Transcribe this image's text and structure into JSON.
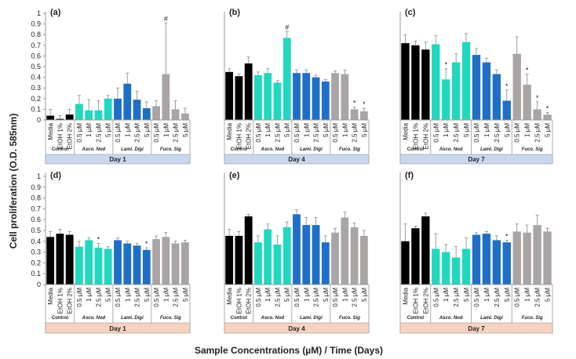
{
  "figure": {
    "ylabel": "Cell proliferation (O.D. 585nm)",
    "xlabel": "Sample Concentrations (µM) / Time (Days)"
  },
  "colors": {
    "control": "#000000",
    "asco": "#20D8BE",
    "lami": "#1F6FC6",
    "fuco": "#A9A5A5",
    "day_band_top": "#C9D7EE",
    "day_band_bottom": "#F7D2C0",
    "axis": "#999999",
    "error_bar": "#888888"
  },
  "chart_data": [
    {
      "type": "bar",
      "panel": "(a)",
      "day_label": "Day 1",
      "ylim": [
        0,
        1
      ],
      "yticks": [
        0,
        0.1,
        0.2,
        0.3,
        0.4,
        0.5,
        0.6,
        0.7,
        0.8,
        0.9,
        1
      ],
      "categories": [
        "Media",
        "EtOH 1%",
        "EtOH 2%",
        "0.5 µM",
        "1 µM",
        "2.5 µM",
        "5 µM",
        "0.5 µM",
        "1 µM",
        "2.5 µM",
        "5 µM",
        "0.5 µM",
        "1 µM",
        "2.5 µM",
        "5 µM"
      ],
      "groups": [
        "Control",
        "Asco. Nod",
        "Lami. Digi",
        "Fuco. Sig"
      ],
      "values": [
        0.04,
        0.01,
        0.05,
        0.15,
        0.09,
        0.09,
        0.2,
        0.2,
        0.34,
        0.19,
        0.11,
        0.13,
        0.43,
        0.1,
        0.06
      ],
      "errors": [
        0.06,
        0.03,
        0.05,
        0.08,
        0.1,
        0.09,
        0.03,
        0.1,
        0.1,
        0.08,
        0.06,
        0.05,
        0.48,
        0.08,
        0.05
      ],
      "annotations": [
        {
          "bar": 12,
          "text": "#"
        }
      ]
    },
    {
      "type": "bar",
      "panel": "(b)",
      "day_label": "Day 4",
      "ylim": [
        0,
        1
      ],
      "categories": [
        "Media",
        "EtOH 1%",
        "EtOH 2%",
        "0.5 µM",
        "1 µM",
        "2.5 µM",
        "5 µM",
        "0.5 µM",
        "1 µM",
        "2.5 µM",
        "5 µM",
        "0.5 µM",
        "1 µM",
        "2.5 µM",
        "5 µM"
      ],
      "groups": [
        "Control",
        "Asco. Nod",
        "Lami. Digi",
        "Fuco. Sig"
      ],
      "values": [
        0.45,
        0.41,
        0.53,
        0.42,
        0.44,
        0.35,
        0.77,
        0.44,
        0.44,
        0.4,
        0.36,
        0.44,
        0.43,
        0.1,
        0.08
      ],
      "errors": [
        0.03,
        0.02,
        0.06,
        0.03,
        0.04,
        0.02,
        0.06,
        0.03,
        0.03,
        0.02,
        0.02,
        0.02,
        0.04,
        0.02,
        0.03
      ],
      "annotations": [
        {
          "bar": 6,
          "text": "#"
        },
        {
          "bar": 13,
          "text": "*"
        },
        {
          "bar": 14,
          "text": "*"
        }
      ]
    },
    {
      "type": "bar",
      "panel": "(c)",
      "day_label": "Day 7",
      "ylim": [
        0,
        1
      ],
      "categories": [
        "Media",
        "EtOH 1%",
        "EtOH 2%",
        "0.5 µM",
        "1 µM",
        "2.5 µM",
        "5 µM",
        "0.5 µM",
        "1 µM",
        "2.5 µM",
        "5 µM",
        "0.5 µM",
        "1 µM",
        "2.5 µM",
        "5 µM"
      ],
      "groups": [
        "Control",
        "Asco. Nod",
        "Lami. Digi",
        "Fuco. Sig"
      ],
      "values": [
        0.72,
        0.7,
        0.66,
        0.71,
        0.38,
        0.54,
        0.73,
        0.61,
        0.54,
        0.43,
        0.18,
        0.62,
        0.33,
        0.1,
        0.05
      ],
      "errors": [
        0.08,
        0.04,
        0.07,
        0.08,
        0.1,
        0.08,
        0.08,
        0.06,
        0.04,
        0.04,
        0.1,
        0.16,
        0.1,
        0.07,
        0.02
      ],
      "annotations": [
        {
          "bar": 4,
          "text": "*"
        },
        {
          "bar": 10,
          "text": "*"
        },
        {
          "bar": 12,
          "text": "*"
        },
        {
          "bar": 13,
          "text": "*"
        },
        {
          "bar": 14,
          "text": "*"
        }
      ]
    },
    {
      "type": "bar",
      "panel": "(d)",
      "day_label": "Day 1",
      "ylim": [
        0,
        1
      ],
      "categories": [
        "Media",
        "EtOH 1%",
        "EtOH 2%",
        "0.5 µM",
        "1 µM",
        "2.5 µM",
        "5 µM",
        "0.5 µM",
        "1 µM",
        "2.5 µM",
        "5 µM",
        "0.5 µM",
        "1 µM",
        "2.5 µM",
        "5 µM"
      ],
      "groups": [
        "Control",
        "Asco. Nod",
        "Lami. Digi",
        "Fuco. Sig"
      ],
      "values": [
        0.44,
        0.47,
        0.46,
        0.35,
        0.41,
        0.34,
        0.33,
        0.41,
        0.38,
        0.36,
        0.32,
        0.42,
        0.44,
        0.38,
        0.39
      ],
      "errors": [
        0.05,
        0.04,
        0.03,
        0.05,
        0.02,
        0.04,
        0.02,
        0.02,
        0.02,
        0.02,
        0.02,
        0.03,
        0.04,
        0.02,
        0.02
      ],
      "annotations": [
        {
          "bar": 5,
          "text": "*"
        },
        {
          "bar": 10,
          "text": "*"
        }
      ]
    },
    {
      "type": "bar",
      "panel": "(e)",
      "day_label": "Day 4",
      "ylim": [
        0,
        1
      ],
      "categories": [
        "Media",
        "EtOH 1%",
        "EtOH 2%",
        "0.5 µM",
        "1 µM",
        "2.5 µM",
        "5 µM",
        "0.5 µM",
        "1 µM",
        "2.5 µM",
        "5 µM",
        "0.5 µM",
        "1 µM",
        "2.5 µM",
        "5 µM"
      ],
      "groups": [
        "Control",
        "Asco. Nod",
        "Lami. Digi",
        "Fuco. Sig"
      ],
      "values": [
        0.45,
        0.45,
        0.63,
        0.39,
        0.51,
        0.37,
        0.53,
        0.65,
        0.55,
        0.55,
        0.39,
        0.48,
        0.62,
        0.53,
        0.45
      ],
      "errors": [
        0.06,
        0.04,
        0.02,
        0.06,
        0.05,
        0.08,
        0.05,
        0.04,
        0.07,
        0.07,
        0.06,
        0.04,
        0.05,
        0.04,
        0.05
      ],
      "annotations": []
    },
    {
      "type": "bar",
      "panel": "(f)",
      "day_label": "Day 7",
      "ylim": [
        0,
        1
      ],
      "categories": [
        "Media",
        "EtOH 1%",
        "EtOH 2%",
        "0.5 µM",
        "1 µM",
        "2.5 µM",
        "5 µM",
        "0.5 µM",
        "1 µM",
        "2.5 µM",
        "5 µM",
        "0.5 µM",
        "1 µM",
        "2.5 µM",
        "5 µM"
      ],
      "groups": [
        "Control",
        "Asco. Nod",
        "Lami. Digi",
        "Fuco. Sig"
      ],
      "values": [
        0.4,
        0.52,
        0.63,
        0.33,
        0.3,
        0.25,
        0.33,
        0.46,
        0.47,
        0.41,
        0.39,
        0.49,
        0.48,
        0.55,
        0.49
      ],
      "errors": [
        0.16,
        0.02,
        0.03,
        0.14,
        0.07,
        0.1,
        0.1,
        0.02,
        0.02,
        0.04,
        0.02,
        0.07,
        0.07,
        0.09,
        0.03
      ],
      "annotations": [
        {
          "bar": 10,
          "text": "*"
        }
      ]
    }
  ]
}
